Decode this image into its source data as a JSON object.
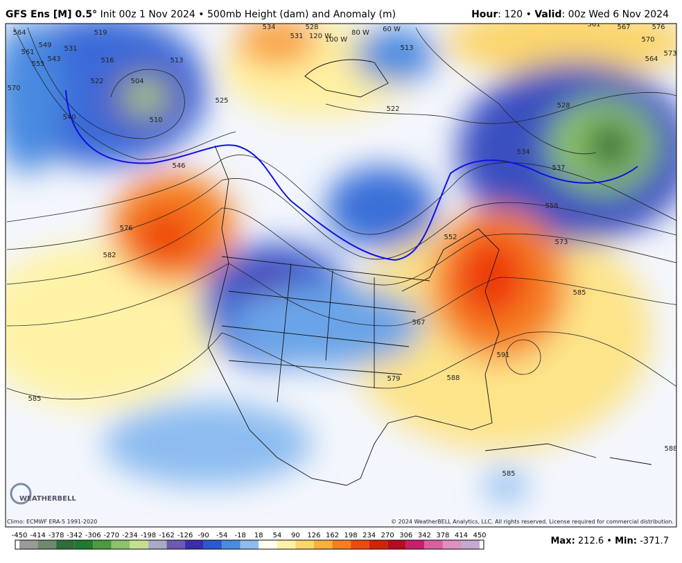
{
  "header": {
    "model": "GFS Ens [M] 0.5°",
    "init": "Init 00z 1 Nov 2024",
    "separator": "•",
    "product": "500mb Height (dam) and Anomaly (m)",
    "hour_label": "Hour",
    "hour_value": ": 120",
    "valid_label": "Valid",
    "valid_value": ": 00z Wed 6 Nov 2024"
  },
  "map": {
    "contour_labels": [
      564,
      561,
      555,
      549,
      543,
      531,
      519,
      516,
      522,
      570,
      540,
      504,
      513,
      510,
      525,
      546,
      576,
      582,
      585,
      534,
      531,
      528,
      "120 W",
      "100 W",
      "80 W",
      "60 W",
      513,
      522,
      534,
      537,
      528,
      558,
      552,
      573,
      585,
      591,
      588,
      579,
      567,
      561,
      567,
      570,
      576,
      573,
      564,
      585,
      588
    ],
    "logo": "WEATHERBELL"
  },
  "footer": {
    "climo": "Climo: ECMWF ERA-5 1991-2020",
    "copyright": "© 2024 WeatherBELL Analytics, LLC. All rights reserved. License required for commercial distribution.",
    "max_label": "Max:",
    "max": 212.6,
    "stat_separator": "•",
    "min_label": "Min:",
    "min": -371.7
  },
  "colorbar": {
    "ticks": [
      -450,
      -414,
      -378,
      -342,
      -306,
      -270,
      -234,
      -198,
      -162,
      -126,
      -90,
      -54,
      -18,
      18,
      54,
      90,
      126,
      162,
      198,
      234,
      270,
      306,
      342,
      378,
      414,
      450
    ],
    "colors": [
      "#9a9a9a",
      "#6e8a6e",
      "#2f6e3a",
      "#1f7a2e",
      "#4e9a3e",
      "#8cc26a",
      "#c4e08e",
      "#a9a9c9",
      "#6e5ab0",
      "#3a2fa8",
      "#2a5ad0",
      "#4a8ae0",
      "#8cbcf0",
      "#fffff0",
      "#fff2a8",
      "#fcd56a",
      "#f9b040",
      "#f57f20",
      "#ee4a10",
      "#d6200a",
      "#b80a20",
      "#c8206a",
      "#d860a0",
      "#e090c0",
      "#c8a8d0"
    ]
  }
}
